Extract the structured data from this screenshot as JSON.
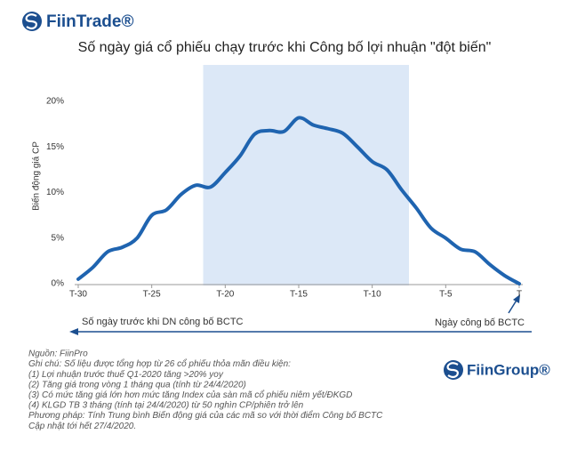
{
  "brand": {
    "left": "FiinTrade®",
    "right": "FiinGroup®"
  },
  "chart_data": {
    "type": "line",
    "title": "Số ngày giá cổ phiếu chạy trước khi Công bố lợi nhuận \"đột biến\"",
    "y_label": "Biến động giá CP",
    "x": [
      -30,
      -29,
      -28,
      -27,
      -26,
      -25,
      -24,
      -23,
      -22,
      -21,
      -20,
      -19,
      -18,
      -17,
      -16,
      -15,
      -14,
      -13,
      -12,
      -11,
      -10,
      -9,
      -8,
      -7,
      -6,
      -5,
      -4,
      -3,
      -2,
      -1,
      0
    ],
    "series": [
      {
        "name": "Biến động giá CP",
        "color": "#1f64b0",
        "values": [
          0.5,
          1.8,
          3.5,
          4.0,
          5.0,
          7.5,
          8.1,
          9.8,
          10.8,
          10.6,
          12.2,
          14.0,
          16.4,
          16.8,
          16.7,
          18.2,
          17.4,
          17.0,
          16.5,
          15.0,
          13.4,
          12.5,
          10.3,
          8.3,
          6.1,
          5.0,
          3.8,
          3.5,
          2.1,
          0.9,
          0
        ]
      }
    ],
    "xlim": [
      -30,
      0
    ],
    "xticks": [
      {
        "value": -30,
        "label": "T-30"
      },
      {
        "value": -25,
        "label": "T-25"
      },
      {
        "value": -20,
        "label": "T-20"
      },
      {
        "value": -15,
        "label": "T-15"
      },
      {
        "value": -10,
        "label": "T-10"
      },
      {
        "value": -5,
        "label": "T-5"
      },
      {
        "value": 0,
        "label": "T"
      }
    ],
    "ylim": [
      0,
      24
    ],
    "yticks": [
      {
        "value": 0,
        "label": "0%"
      },
      {
        "value": 5,
        "label": "5%"
      },
      {
        "value": 10,
        "label": "10%"
      },
      {
        "value": 15,
        "label": "15%"
      },
      {
        "value": 20,
        "label": "20%"
      }
    ],
    "shaded_range": [
      -21.5,
      -7.5
    ],
    "shade_color": "#dce8f7",
    "annotations": {
      "left": "Số ngày trước khi DN công bố BCTC",
      "right": "Ngày công bố BCTC"
    }
  },
  "notes": [
    "Nguồn: FiinPro",
    "Ghi chú: Số liệu được tổng hợp từ 26 cổ phiếu thỏa mãn điều kiện:",
    "(1) Lợi nhuận trước thuế Q1-2020 tăng >20% yoy",
    "(2) Tăng giá trong vòng 1 tháng qua (tính từ 24/4/2020)",
    "(3) Có mức tăng giá lớn hơn mức tăng Index của sàn mã cổ phiếu niêm yết/ĐKGD",
    "(4) KLGD TB 3 tháng (tính tại 24/4/2020) từ 50 nghìn CP/phiên trở lên",
    "Phương pháp: Tính Trung bình Biến động giá của các mã so với thời điểm Công bố BCTC",
    "Cập nhật tới hết 27/4/2020."
  ]
}
